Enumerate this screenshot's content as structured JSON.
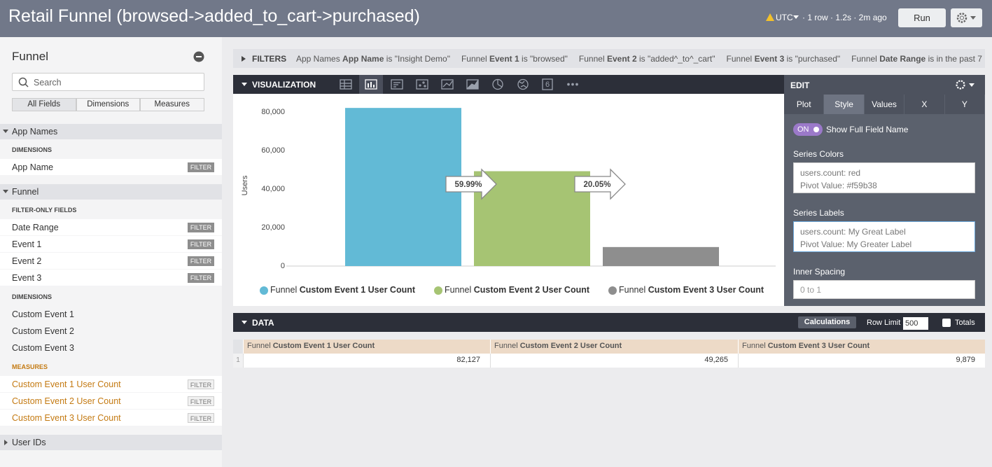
{
  "header": {
    "title": "Retail Funnel (browsed->added_to_cart->purchased)",
    "timezone": "UTC",
    "status": "· 1 row · 1.2s · 2m ago",
    "run_button": "Run"
  },
  "sidebar": {
    "title": "Funnel",
    "search_placeholder": "Search",
    "tabs": [
      "All Fields",
      "Dimensions",
      "Measures"
    ],
    "groups": [
      {
        "name": "App Names",
        "sections": [
          {
            "heading": "DIMENSIONS",
            "fields": [
              {
                "label": "App Name",
                "action": "FILTER"
              }
            ]
          }
        ]
      },
      {
        "name": "Funnel",
        "sections": [
          {
            "heading": "FILTER-ONLY FIELDS",
            "fields": [
              {
                "label": "Date Range",
                "action": "FILTER"
              },
              {
                "label": "Event 1",
                "action": "FILTER"
              },
              {
                "label": "Event 2",
                "action": "FILTER"
              },
              {
                "label": "Event 3",
                "action": "FILTER"
              }
            ]
          },
          {
            "heading": "DIMENSIONS",
            "fields": [
              {
                "label": "Custom Event 1"
              },
              {
                "label": "Custom Event 2"
              },
              {
                "label": "Custom Event 3"
              }
            ]
          },
          {
            "heading": "MEASURES",
            "color": "#c47a12",
            "fields": [
              {
                "label": "Custom Event 1 User Count",
                "action": "FILTER"
              },
              {
                "label": "Custom Event 2 User Count",
                "action": "FILTER"
              },
              {
                "label": "Custom Event 3 User Count",
                "action": "FILTER"
              }
            ]
          }
        ]
      },
      {
        "name": "User IDs",
        "sections": []
      }
    ]
  },
  "filters": {
    "label": "FILTERS",
    "items": [
      {
        "view": "App Names",
        "field": "App Name",
        "condition": "is \"Insight Demo\""
      },
      {
        "view": "Funnel",
        "field": "Event 1",
        "condition": "is \"browsed\""
      },
      {
        "view": "Funnel",
        "field": "Event 2",
        "condition": "is \"added^_to^_cart\""
      },
      {
        "view": "Funnel",
        "field": "Event 3",
        "condition": "is \"purchased\""
      },
      {
        "view": "Funnel",
        "field": "Date Range",
        "condition": "is in the past 7"
      }
    ]
  },
  "visualization": {
    "label": "VISUALIZATION",
    "single_value_icon": "6"
  },
  "chart_data": {
    "type": "bar",
    "y_label": "Users",
    "ylim": [
      0,
      84000
    ],
    "yticks": [
      0,
      {
        "value": 20000,
        "label": "20,000"
      },
      {
        "value": 40000,
        "label": "40,000"
      },
      {
        "value": 60000,
        "label": "60,000"
      },
      {
        "value": 80000,
        "label": "80,000"
      }
    ],
    "series": [
      {
        "view": "Funnel",
        "name": "Custom Event 1 User Count",
        "color": "#62bad6",
        "values": [
          82127
        ]
      },
      {
        "view": "Funnel",
        "name": "Custom Event 2 User Count",
        "color": "#a6c473",
        "values": [
          49265
        ]
      },
      {
        "view": "Funnel",
        "name": "Custom Event 3 User Count",
        "color": "#8e8e8e",
        "values": [
          9879
        ]
      }
    ],
    "step_labels": [
      "59.99%",
      "20.05%"
    ]
  },
  "edit_panel": {
    "title": "EDIT",
    "tabs": [
      "Plot",
      "Style",
      "Values",
      "X",
      "Y"
    ],
    "active_tab": 1,
    "toggle": "ON",
    "toggle_label": "Show Full Field Name",
    "series_colors_label": "Series Colors",
    "series_colors": [
      "users.count: red",
      "Pivot Value: #f59b38"
    ],
    "series_labels_label": "Series Labels",
    "series_labels": [
      "users.count: My Great Label",
      "Pivot Value: My Greater Label"
    ],
    "inner_spacing_label": "Inner Spacing",
    "inner_spacing_placeholder": "0 to 1"
  },
  "data_panel": {
    "label": "DATA",
    "calculations": "Calculations",
    "row_limit_label": "Row Limit",
    "row_limit": "500",
    "totals": "Totals"
  },
  "table": {
    "columns": [
      {
        "view": "Funnel",
        "name": "Custom Event 1 User Count"
      },
      {
        "view": "Funnel",
        "name": "Custom Event 2 User Count"
      },
      {
        "view": "Funnel",
        "name": "Custom Event 3 User Count"
      }
    ],
    "rows": [
      [
        "1",
        "82,127",
        "49,265",
        "9,879"
      ]
    ]
  }
}
